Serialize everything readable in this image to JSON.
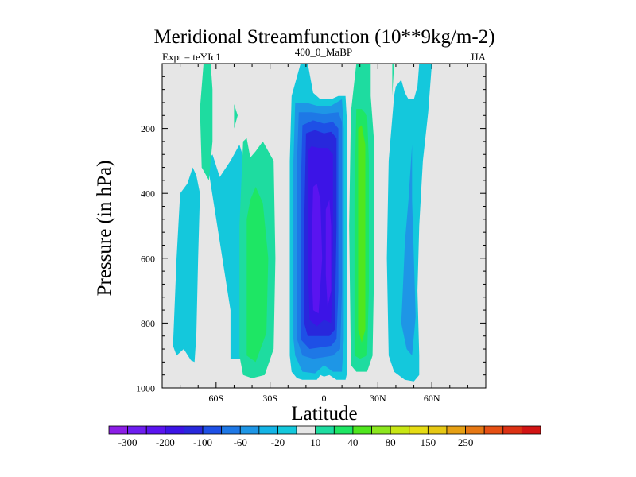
{
  "chart_data": {
    "type": "heatmap",
    "title": "Meridional Streamfunction (10**9kg/m-2)",
    "subtitle_left": "Expt = teYIc1",
    "subtitle_center": "400_0_MaBP",
    "subtitle_right": "JJA",
    "xlabel": "Latitude",
    "ylabel": "Pressure (in hPa)",
    "xlim": [
      -90,
      90
    ],
    "ylim": [
      0,
      1000
    ],
    "x_ticks": [
      {
        "value": -60,
        "label": "60S"
      },
      {
        "value": -30,
        "label": "30S"
      },
      {
        "value": 0,
        "label": "0"
      },
      {
        "value": 30,
        "label": "30N"
      },
      {
        "value": 60,
        "label": "60N"
      }
    ],
    "y_ticks": [
      {
        "value": 200,
        "label": "200"
      },
      {
        "value": 400,
        "label": "400"
      },
      {
        "value": 600,
        "label": "600"
      },
      {
        "value": 800,
        "label": "800"
      },
      {
        "value": 1000,
        "label": "1000"
      }
    ],
    "colorbar": {
      "colors": [
        "#8c1ee6",
        "#6e1ef0",
        "#5a14f0",
        "#3c14e6",
        "#2828dc",
        "#1e50e6",
        "#1e78e6",
        "#1e96e6",
        "#14b4e6",
        "#14c8dc",
        "#e6e6e6",
        "#1edca0",
        "#1ee664",
        "#50e61e",
        "#8ce61e",
        "#c8e614",
        "#e6dc14",
        "#e6c814",
        "#e6a014",
        "#e67814",
        "#e65014",
        "#dc3214",
        "#d21414"
      ],
      "labels": [
        {
          "after_index": 0,
          "text": "-300"
        },
        {
          "after_index": 2,
          "text": "-200"
        },
        {
          "after_index": 4,
          "text": "-100"
        },
        {
          "after_index": 6,
          "text": "-60"
        },
        {
          "after_index": 8,
          "text": "-20"
        },
        {
          "after_index": 10,
          "text": "10"
        },
        {
          "after_index": 12,
          "text": "40"
        },
        {
          "after_index": 14,
          "text": "80"
        },
        {
          "after_index": 16,
          "text": "150"
        },
        {
          "after_index": 18,
          "text": "250"
        }
      ]
    },
    "contour_regions": [
      {
        "level": "-10 to -20",
        "color": "#14c8dc",
        "polygon": [
          [
            -52,
            760
          ],
          [
            -52,
            910
          ],
          [
            -42,
            912
          ],
          [
            -42,
            340
          ],
          [
            -47,
            250
          ],
          [
            -52,
            300
          ],
          [
            -58,
            350
          ],
          [
            -62,
            280
          ],
          [
            -65,
            300
          ]
        ]
      },
      {
        "level": "-10 to -20",
        "color": "#14c8dc",
        "polygon": [
          [
            -80,
            400
          ],
          [
            -82,
            600
          ],
          [
            -84,
            870
          ],
          [
            -82,
            900
          ],
          [
            -78,
            880
          ],
          [
            -74,
            915
          ],
          [
            -72,
            920
          ],
          [
            -71,
            835
          ],
          [
            -70,
            600
          ],
          [
            -69,
            400
          ],
          [
            -71,
            345
          ],
          [
            -73,
            320
          ],
          [
            -76,
            370
          ]
        ]
      },
      {
        "level": "-10 to -20",
        "color": "#14c8dc",
        "polygon": [
          [
            -13,
            0
          ],
          [
            -18,
            100
          ],
          [
            -19,
            300
          ],
          [
            -19,
            700
          ],
          [
            -19,
            900
          ],
          [
            -18,
            950
          ],
          [
            -15,
            970
          ],
          [
            -12,
            975
          ],
          [
            -8,
            975
          ],
          [
            -4,
            975
          ],
          [
            -2,
            960
          ],
          [
            0,
            965
          ],
          [
            3,
            960
          ],
          [
            7,
            975
          ],
          [
            12,
            975
          ],
          [
            13,
            950
          ],
          [
            13,
            700
          ],
          [
            13,
            400
          ],
          [
            13,
            200
          ],
          [
            12,
            100
          ],
          [
            8,
            100
          ],
          [
            4,
            110
          ],
          [
            -2,
            110
          ],
          [
            -6,
            90
          ],
          [
            -9,
            0
          ]
        ]
      },
      {
        "level": "-10 to -20",
        "color": "#14c8dc",
        "polygon": [
          [
            39,
            100
          ],
          [
            36,
            300
          ],
          [
            35,
            600
          ],
          [
            36,
            900
          ],
          [
            39,
            950
          ],
          [
            45,
            975
          ],
          [
            50,
            980
          ],
          [
            53,
            960
          ],
          [
            53,
            900
          ],
          [
            52,
            700
          ],
          [
            53,
            500
          ],
          [
            55,
            300
          ],
          [
            58,
            150
          ],
          [
            60,
            0
          ],
          [
            53,
            0
          ],
          [
            52,
            70
          ],
          [
            50,
            110
          ],
          [
            47,
            110
          ],
          [
            45,
            90
          ],
          [
            43,
            50
          ],
          [
            40,
            70
          ]
        ]
      },
      {
        "level": "-20 to -40",
        "color": "#1e96e6",
        "polygon": [
          [
            -16,
            120
          ],
          [
            -17,
            300
          ],
          [
            -17,
            600
          ],
          [
            -17,
            850
          ],
          [
            -16,
            900
          ],
          [
            -12,
            950
          ],
          [
            -5,
            955
          ],
          [
            0,
            930
          ],
          [
            5,
            950
          ],
          [
            10,
            950
          ],
          [
            11,
            850
          ],
          [
            11,
            500
          ],
          [
            11,
            200
          ],
          [
            10,
            110
          ],
          [
            4,
            130
          ],
          [
            -4,
            130
          ],
          [
            -10,
            120
          ]
        ]
      },
      {
        "level": "-20 to -40",
        "color": "#1e96e6",
        "polygon": [
          [
            43,
            800
          ],
          [
            46,
            880
          ],
          [
            49,
            900
          ],
          [
            51,
            780
          ],
          [
            50,
            600
          ],
          [
            49,
            420
          ],
          [
            49,
            250
          ],
          [
            47,
            420
          ],
          [
            45,
            550
          ],
          [
            44,
            680
          ]
        ]
      },
      {
        "level": "-40 to -60",
        "color": "#1e78e6",
        "polygon": [
          [
            -14,
            150
          ],
          [
            -15,
            300
          ],
          [
            -15,
            600
          ],
          [
            -15,
            850
          ],
          [
            -12,
            900
          ],
          [
            -6,
            910
          ],
          [
            0,
            905
          ],
          [
            5,
            900
          ],
          [
            9,
            880
          ],
          [
            10,
            700
          ],
          [
            10,
            400
          ],
          [
            10,
            180
          ],
          [
            8,
            150
          ],
          [
            0,
            155
          ],
          [
            -7,
            150
          ]
        ]
      },
      {
        "level": "-60 to -100",
        "color": "#1e50e6",
        "polygon": [
          [
            -12,
            190
          ],
          [
            -13,
            400
          ],
          [
            -13,
            700
          ],
          [
            -13,
            850
          ],
          [
            -8,
            880
          ],
          [
            -2,
            875
          ],
          [
            4,
            870
          ],
          [
            7,
            850
          ],
          [
            8,
            700
          ],
          [
            8,
            400
          ],
          [
            8,
            200
          ],
          [
            5,
            180
          ],
          [
            0,
            185
          ],
          [
            -6,
            175
          ]
        ]
      },
      {
        "level": "-100 to -150",
        "color": "#2828dc",
        "polygon": [
          [
            -10,
            215
          ],
          [
            -11,
            500
          ],
          [
            -11,
            800
          ],
          [
            -9,
            840
          ],
          [
            -3,
            840
          ],
          [
            3,
            840
          ],
          [
            6,
            820
          ],
          [
            7,
            500
          ],
          [
            7,
            230
          ],
          [
            4,
            210
          ],
          [
            0,
            215
          ],
          [
            -5,
            205
          ]
        ]
      },
      {
        "level": "-150 to -200",
        "color": "#3c14e6",
        "polygon": [
          [
            -9,
            270
          ],
          [
            -9,
            600
          ],
          [
            -8,
            790
          ],
          [
            -4,
            810
          ],
          [
            0,
            790
          ],
          [
            4,
            800
          ],
          [
            5,
            550
          ],
          [
            5,
            280
          ],
          [
            2,
            260
          ],
          [
            -3,
            260
          ],
          [
            -7,
            255
          ]
        ]
      },
      {
        "level": "-200 to -250",
        "color": "#5a14f0",
        "polygon": [
          [
            -6,
            380
          ],
          [
            -7,
            600
          ],
          [
            -6,
            760
          ],
          [
            -3,
            770
          ],
          [
            -1,
            600
          ],
          [
            -2,
            420
          ],
          [
            -4,
            370
          ]
        ]
      },
      {
        "level": "-200 to -250",
        "color": "#5a14f0",
        "polygon": [
          [
            1,
            450
          ],
          [
            1,
            650
          ],
          [
            2,
            750
          ],
          [
            4,
            700
          ],
          [
            4,
            500
          ],
          [
            3,
            420
          ]
        ]
      },
      {
        "level": "10 to 20",
        "color": "#1edca0",
        "polygon": [
          [
            -67,
            0
          ],
          [
            -69,
            140
          ],
          [
            -68,
            320
          ],
          [
            -64,
            360
          ],
          [
            -62,
            240
          ],
          [
            -62,
            80
          ],
          [
            -63,
            0
          ]
        ]
      },
      {
        "level": "10 to 20",
        "color": "#1edca0",
        "polygon": [
          [
            -50,
            125
          ],
          [
            -50,
            200
          ],
          [
            -48,
            160
          ]
        ]
      },
      {
        "level": "10 to 20",
        "color": "#1edca0",
        "polygon": [
          [
            -45,
            240
          ],
          [
            -47,
            500
          ],
          [
            -47,
            900
          ],
          [
            -45,
            960
          ],
          [
            -40,
            970
          ],
          [
            -33,
            960
          ],
          [
            -28,
            880
          ],
          [
            -27,
            600
          ],
          [
            -28,
            300
          ],
          [
            -34,
            240
          ],
          [
            -38,
            270
          ],
          [
            -41,
            290
          ],
          [
            -43,
            230
          ]
        ]
      },
      {
        "level": "10 to 20",
        "color": "#1edca0",
        "polygon": [
          [
            18,
            0
          ],
          [
            15,
            150
          ],
          [
            14,
            500
          ],
          [
            15,
            930
          ],
          [
            18,
            950
          ],
          [
            24,
            950
          ],
          [
            27,
            900
          ],
          [
            28,
            600
          ],
          [
            28,
            250
          ],
          [
            26,
            100
          ],
          [
            26,
            0
          ]
        ]
      },
      {
        "level": "10 to 20",
        "color": "#1edca0",
        "polygon": [
          [
            38,
            0
          ],
          [
            38,
            100
          ],
          [
            39,
            0
          ]
        ]
      },
      {
        "level": "20 to 30",
        "color": "#1ee664",
        "polygon": [
          [
            -43,
            480
          ],
          [
            -43,
            900
          ],
          [
            -38,
            920
          ],
          [
            -32,
            830
          ],
          [
            -31,
            600
          ],
          [
            -34,
            430
          ],
          [
            -38,
            380
          ],
          [
            -41,
            420
          ]
        ]
      },
      {
        "level": "20 to 30",
        "color": "#1ee664",
        "polygon": [
          [
            18,
            140
          ],
          [
            17,
            400
          ],
          [
            17,
            800
          ],
          [
            17,
            900
          ],
          [
            20,
            910
          ],
          [
            24,
            900
          ],
          [
            25,
            700
          ],
          [
            25,
            300
          ],
          [
            24,
            160
          ],
          [
            21,
            140
          ]
        ]
      },
      {
        "level": "30 to 40",
        "color": "#50e61e",
        "polygon": [
          [
            19,
            200
          ],
          [
            19,
            500
          ],
          [
            19,
            820
          ],
          [
            21,
            860
          ],
          [
            23,
            820
          ],
          [
            23,
            500
          ],
          [
            23,
            250
          ],
          [
            21,
            190
          ]
        ]
      }
    ]
  }
}
